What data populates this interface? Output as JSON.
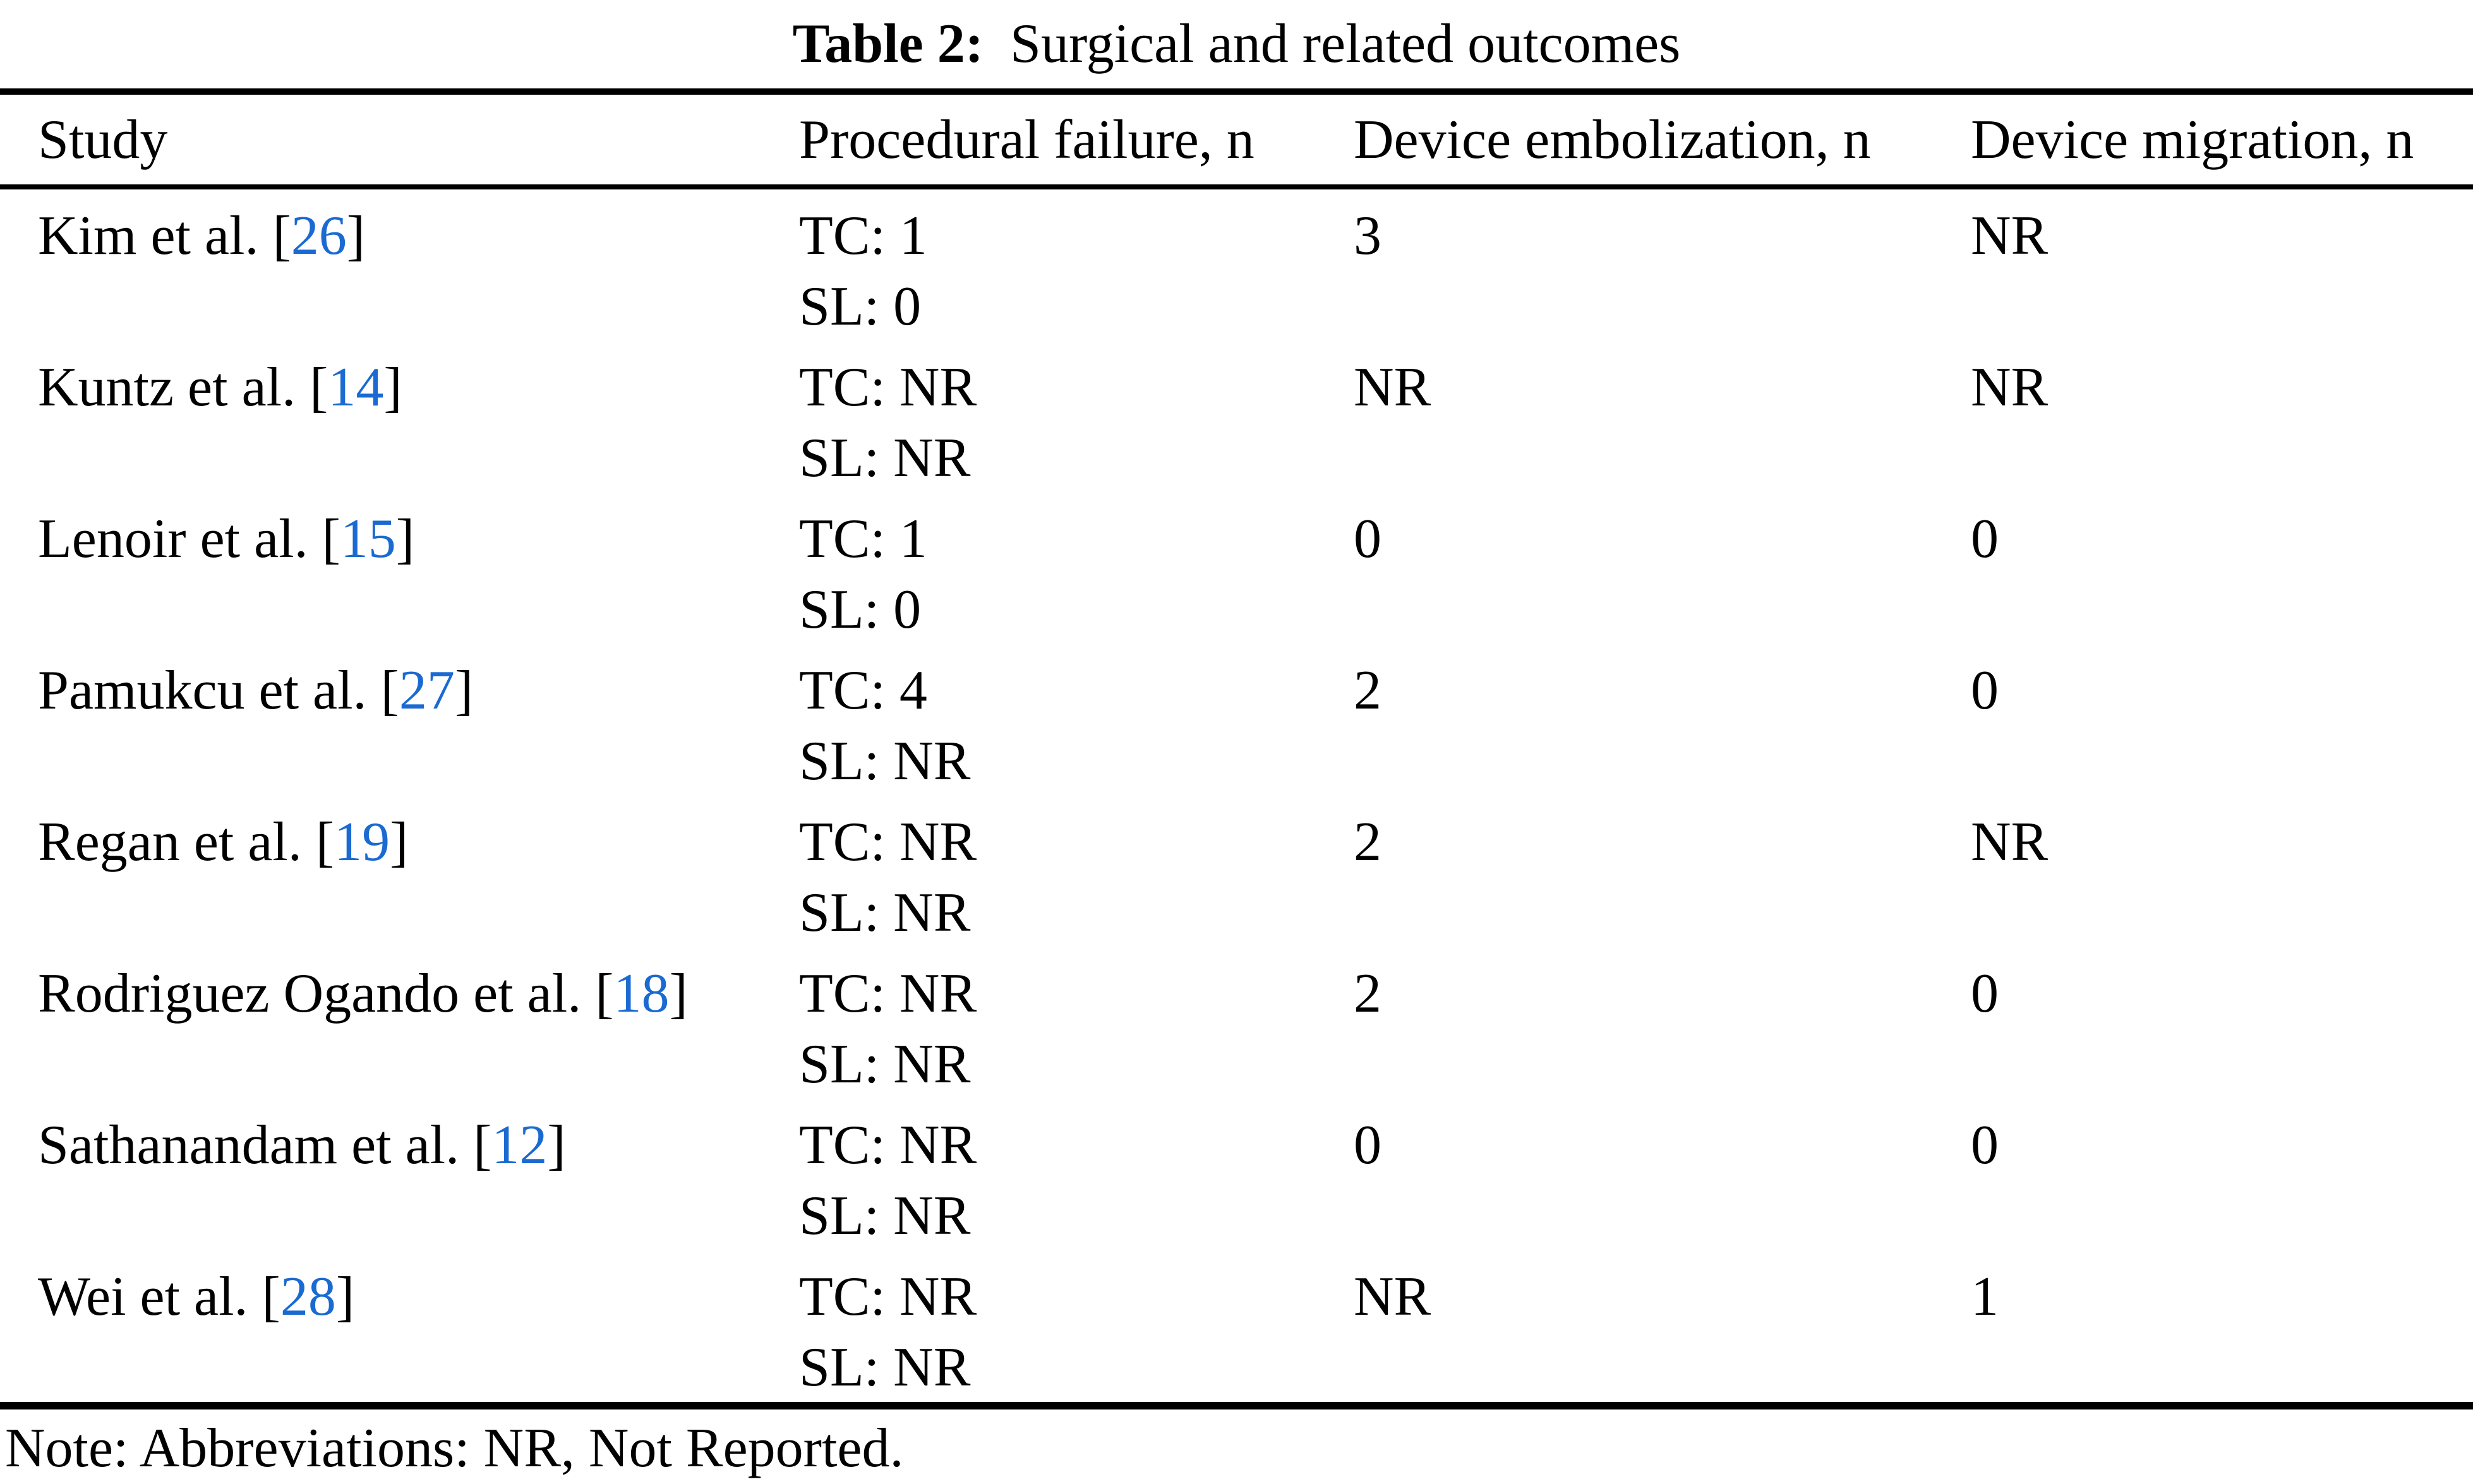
{
  "caption": {
    "label": "Table 2:",
    "text": "Surgical and related outcomes"
  },
  "colors": {
    "link": "#1a6ad2",
    "text": "#000000",
    "background": "#ffffff"
  },
  "table": {
    "columns": [
      "Study",
      "Procedural failure, n",
      "Device embolization, n",
      "Device migration, n"
    ],
    "ref_open": "[",
    "ref_close": "]",
    "rows": [
      {
        "study": "Kim et al. ",
        "ref": "26",
        "tc": "TC: 1",
        "sl": "SL: 0",
        "embolization": "3",
        "migration": "NR"
      },
      {
        "study": "Kuntz et al. ",
        "ref": "14",
        "tc": "TC: NR",
        "sl": "SL: NR",
        "embolization": "NR",
        "migration": "NR"
      },
      {
        "study": "Lenoir et al. ",
        "ref": "15",
        "tc": "TC: 1",
        "sl": "SL: 0",
        "embolization": "0",
        "migration": "0"
      },
      {
        "study": "Pamukcu et al. ",
        "ref": "27",
        "tc": "TC: 4",
        "sl": "SL: NR",
        "embolization": "2",
        "migration": "0"
      },
      {
        "study": "Regan et al. ",
        "ref": "19",
        "tc": "TC: NR",
        "sl": "SL: NR",
        "embolization": "2",
        "migration": "NR"
      },
      {
        "study": "Rodriguez Ogando et al. ",
        "ref": "18",
        "tc": "TC: NR",
        "sl": "SL: NR",
        "embolization": "2",
        "migration": "0"
      },
      {
        "study": "Sathanandam et al. ",
        "ref": "12",
        "tc": "TC: NR",
        "sl": "SL: NR",
        "embolization": "0",
        "migration": "0"
      },
      {
        "study": "Wei et al. ",
        "ref": "28",
        "tc": "TC: NR",
        "sl": "SL: NR",
        "embolization": "NR",
        "migration": "1"
      }
    ]
  },
  "note": "Note: Abbreviations: NR, Not Reported."
}
